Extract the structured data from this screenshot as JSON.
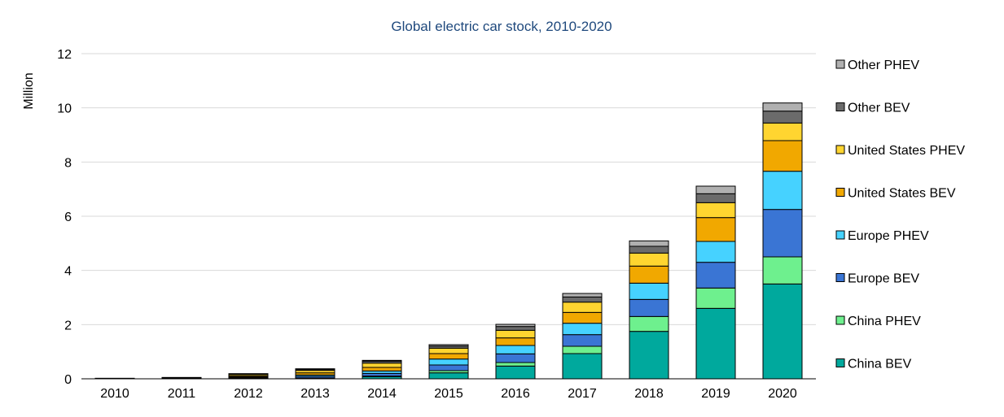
{
  "chart_data": {
    "type": "bar",
    "stacked": true,
    "title": "Global electric car stock, 2010-2020",
    "xlabel": "",
    "ylabel": "Million",
    "ylim": [
      0,
      12
    ],
    "yticks": [
      0,
      2,
      4,
      6,
      8,
      10,
      12
    ],
    "grid": true,
    "legend_position": "right",
    "categories": [
      "2010",
      "2011",
      "2012",
      "2013",
      "2014",
      "2015",
      "2016",
      "2017",
      "2018",
      "2019",
      "2020"
    ],
    "series": [
      {
        "name": "China BEV",
        "color": "#00a99d",
        "values": [
          0.01,
          0.01,
          0.02,
          0.02,
          0.08,
          0.22,
          0.47,
          0.93,
          1.75,
          2.6,
          3.5
        ]
      },
      {
        "name": "China PHEV",
        "color": "#6ef08e",
        "values": [
          0.0,
          0.0,
          0.01,
          0.01,
          0.02,
          0.08,
          0.13,
          0.27,
          0.55,
          0.75,
          1.0
        ]
      },
      {
        "name": "Europe BEV",
        "color": "#3a75d4",
        "values": [
          0.0,
          0.01,
          0.03,
          0.06,
          0.1,
          0.21,
          0.32,
          0.43,
          0.63,
          0.95,
          1.75
        ]
      },
      {
        "name": "Europe PHEV",
        "color": "#46d2ff",
        "values": [
          0.0,
          0.0,
          0.01,
          0.05,
          0.09,
          0.22,
          0.31,
          0.42,
          0.6,
          0.77,
          1.41
        ]
      },
      {
        "name": "United States BEV",
        "color": "#f1a800",
        "values": [
          0.0,
          0.01,
          0.04,
          0.08,
          0.13,
          0.2,
          0.28,
          0.4,
          0.63,
          0.88,
          1.13
        ]
      },
      {
        "name": "United States PHEV",
        "color": "#ffd530",
        "values": [
          0.0,
          0.01,
          0.05,
          0.09,
          0.16,
          0.2,
          0.28,
          0.38,
          0.48,
          0.55,
          0.65
        ]
      },
      {
        "name": "Other BEV",
        "color": "#6b6b6b",
        "values": [
          0.01,
          0.01,
          0.02,
          0.04,
          0.07,
          0.08,
          0.14,
          0.19,
          0.25,
          0.33,
          0.44
        ]
      },
      {
        "name": "Other PHEV",
        "color": "#b0b0b0",
        "values": [
          0.0,
          0.0,
          0.01,
          0.02,
          0.03,
          0.05,
          0.08,
          0.13,
          0.2,
          0.28,
          0.3
        ]
      }
    ]
  }
}
